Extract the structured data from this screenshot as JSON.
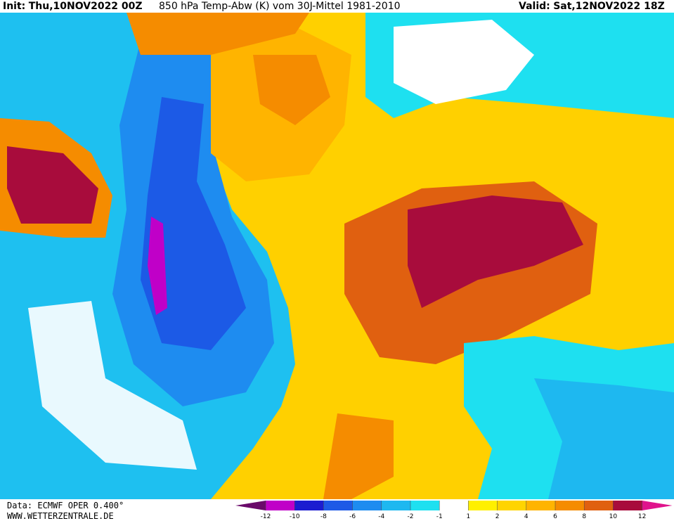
{
  "header": {
    "init_label": "Init:",
    "init": "Thu,10NOV2022 00Z",
    "title": "850 hPa Temp-Abw (K) vom 30J-Mittel 1981-2010",
    "valid_label": "Valid:",
    "valid": "Sat,12NOV2022 18Z"
  },
  "footer": {
    "source": "Data: ECMWF OPER 0.400°",
    "site": "WWW.WETTERZENTRALE.DE"
  },
  "legend": {
    "ticks": [
      -12,
      -10,
      -8,
      -6,
      -4,
      -2,
      -1,
      1,
      2,
      4,
      6,
      8,
      10,
      12
    ],
    "colors": [
      "#6a0a6a",
      "#c000c8",
      "#1c1cd0",
      "#1e5ae6",
      "#1e8cf0",
      "#1eb8f0",
      "#1ee0f0",
      "#ffffff",
      "#fff000",
      "#ffd400",
      "#ffb400",
      "#f58c00",
      "#e06010",
      "#a80c3c",
      "#e0148c"
    ]
  }
}
